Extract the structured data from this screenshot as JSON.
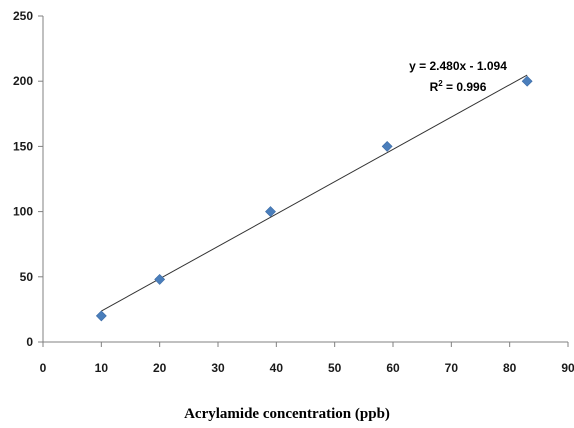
{
  "chart_data": {
    "type": "scatter",
    "xlabel": "Acrylamide concentration (ppb)",
    "ylabel": "",
    "xlim": [
      0,
      90
    ],
    "ylim": [
      0,
      250
    ],
    "x_ticks": [
      "0",
      "10",
      "20",
      "30",
      "40",
      "50",
      "60",
      "70",
      "80",
      "90"
    ],
    "y_ticks": [
      "0",
      "50",
      "100",
      "150",
      "200",
      "250"
    ],
    "grid": false,
    "series": [
      {
        "marker": "diamond",
        "color": "#4a7ebb",
        "points": [
          {
            "x": 10,
            "y": 20
          },
          {
            "x": 20,
            "y": 48
          },
          {
            "x": 39,
            "y": 100
          },
          {
            "x": 59,
            "y": 150
          },
          {
            "x": 83,
            "y": 200
          }
        ]
      }
    ],
    "trendline": {
      "type": "linear",
      "slope": 2.48,
      "intercept": -1.094,
      "x_range": [
        10,
        83
      ],
      "color": "#333333"
    },
    "annotations": {
      "equation": "y = 2.480x - 1.094",
      "r_squared_prefix": "R",
      "r_squared_exponent": "2",
      "r_squared_value": " = 0.996"
    }
  }
}
